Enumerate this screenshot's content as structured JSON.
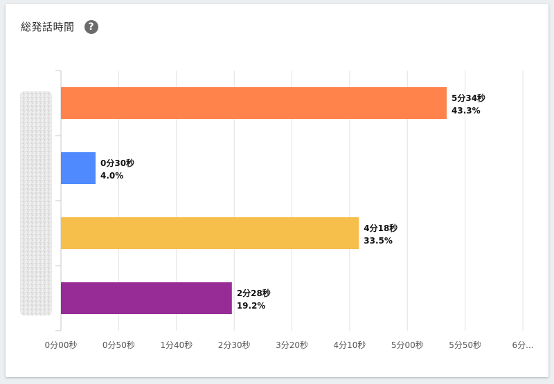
{
  "header": {
    "title": "総発話時間",
    "help_icon": "question-circle-icon"
  },
  "chart_data": {
    "type": "bar",
    "orientation": "horizontal",
    "unit": "seconds",
    "categories": [
      "",
      "",
      "",
      ""
    ],
    "values": [
      334,
      30,
      258,
      148
    ],
    "value_labels": [
      "5分34秒",
      "0分30秒",
      "4分18秒",
      "2分28秒"
    ],
    "percent_labels": [
      "43.3%",
      "4.0%",
      "33.5%",
      "19.2%"
    ],
    "colors": [
      "#ff834b",
      "#4f8bff",
      "#f6be4a",
      "#972c97"
    ],
    "x_ticks": [
      0,
      50,
      100,
      150,
      200,
      250,
      300,
      350,
      400
    ],
    "x_tick_labels": [
      "0分00秒",
      "0分50秒",
      "1分40秒",
      "2分30秒",
      "3分20秒",
      "4分10秒",
      "5分00秒",
      "5分50秒",
      "6分..."
    ],
    "xlim": [
      0,
      400
    ],
    "grid": true,
    "xlabel": "",
    "ylabel": ""
  }
}
